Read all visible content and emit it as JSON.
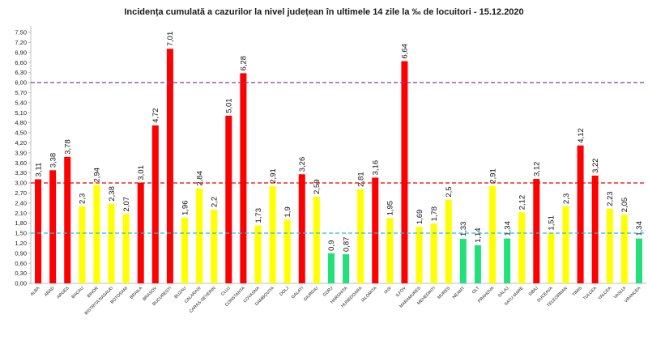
{
  "chart_data": {
    "type": "bar",
    "title": "Incidența cumulată a cazurilor la nivel județean în ultimele 14 zile   la ‰ de locuitori  - 15.12.2020",
    "categories": [
      "ALBA",
      "ARAD",
      "ARGES",
      "BACAU",
      "BIHOR",
      "BISTRITA NASAUD",
      "BOTOSANI",
      "BRAILA",
      "BRASOV",
      "BUCURESTI",
      "BUZAU",
      "CALARASI",
      "CARAS-SEVERIN",
      "CLUJ",
      "CONSTANTA",
      "COVASNA",
      "DAMBOVITA",
      "DOLJ",
      "GALATI",
      "GIURGIU",
      "GORJ",
      "HARGHITA",
      "HUNEDOARA",
      "IALOMITA",
      "IASI",
      "ILFOV",
      "MARAMURES",
      "MEHEDINTI",
      "MURES",
      "NEAMT",
      "OLT",
      "PRAHOVA",
      "SALAJ",
      "SATU MARE",
      "SIBIU",
      "SUCEAVA",
      "TELEORMAN",
      "TIMIS",
      "TULCEA",
      "VALCEA",
      "VASLUI",
      "VRANCEA"
    ],
    "values": [
      3.11,
      3.38,
      3.78,
      2.3,
      2.94,
      2.38,
      2.07,
      3.01,
      4.72,
      7.01,
      1.96,
      2.84,
      2.2,
      5.01,
      6.28,
      1.73,
      2.91,
      1.9,
      3.26,
      2.59,
      0.9,
      0.87,
      2.81,
      3.16,
      1.95,
      6.64,
      1.69,
      1.78,
      2.5,
      1.33,
      1.14,
      2.91,
      1.34,
      2.12,
      3.12,
      1.51,
      2.3,
      4.12,
      3.22,
      2.23,
      2.05,
      1.34
    ],
    "value_labels": [
      "3,11",
      "3,38",
      "3,78",
      "2,3",
      "2,94",
      "2,38",
      "2,07",
      "3,01",
      "4,72",
      "7,01",
      "1,96",
      "2,84",
      "2,2",
      "5,01",
      "6,28",
      "1,73",
      "2,91",
      "1,9",
      "3,26",
      "2,59",
      "0,9",
      "0,87",
      "2,81",
      "3,16",
      "1,95",
      "6,64",
      "1,69",
      "1,78",
      "2,5",
      "1,33",
      "1,14",
      "2,91",
      "1,34",
      "2,12",
      "3,12",
      "1,51",
      "2,3",
      "4,12",
      "3,22",
      "2,23",
      "2,05",
      "1,34"
    ],
    "y_ticks": [
      "0,00",
      "0,30",
      "0,60",
      "0,90",
      "1,20",
      "1,50",
      "1,80",
      "2,10",
      "2,40",
      "2,70",
      "3,00",
      "3,30",
      "3,60",
      "3,90",
      "4,20",
      "4,50",
      "4,80",
      "5,10",
      "5,40",
      "5,70",
      "6,00",
      "6,30",
      "6,60",
      "6,90",
      "7,20",
      "7,50"
    ],
    "ylim": [
      0,
      7.5
    ],
    "thresholds": [
      {
        "value": 1.5,
        "color": "#2fb8e8",
        "style": "dashed"
      },
      {
        "value": 3.0,
        "color": "#e60000",
        "style": "dashed"
      },
      {
        "value": 6.0,
        "color": "#7a3fa0",
        "style": "dashed"
      }
    ],
    "colors": {
      "green": "#22e07a",
      "yellow": "#ffff00",
      "red": "#ff0000",
      "axis": "#bfbfbf"
    },
    "grid": false,
    "legend": "none"
  }
}
